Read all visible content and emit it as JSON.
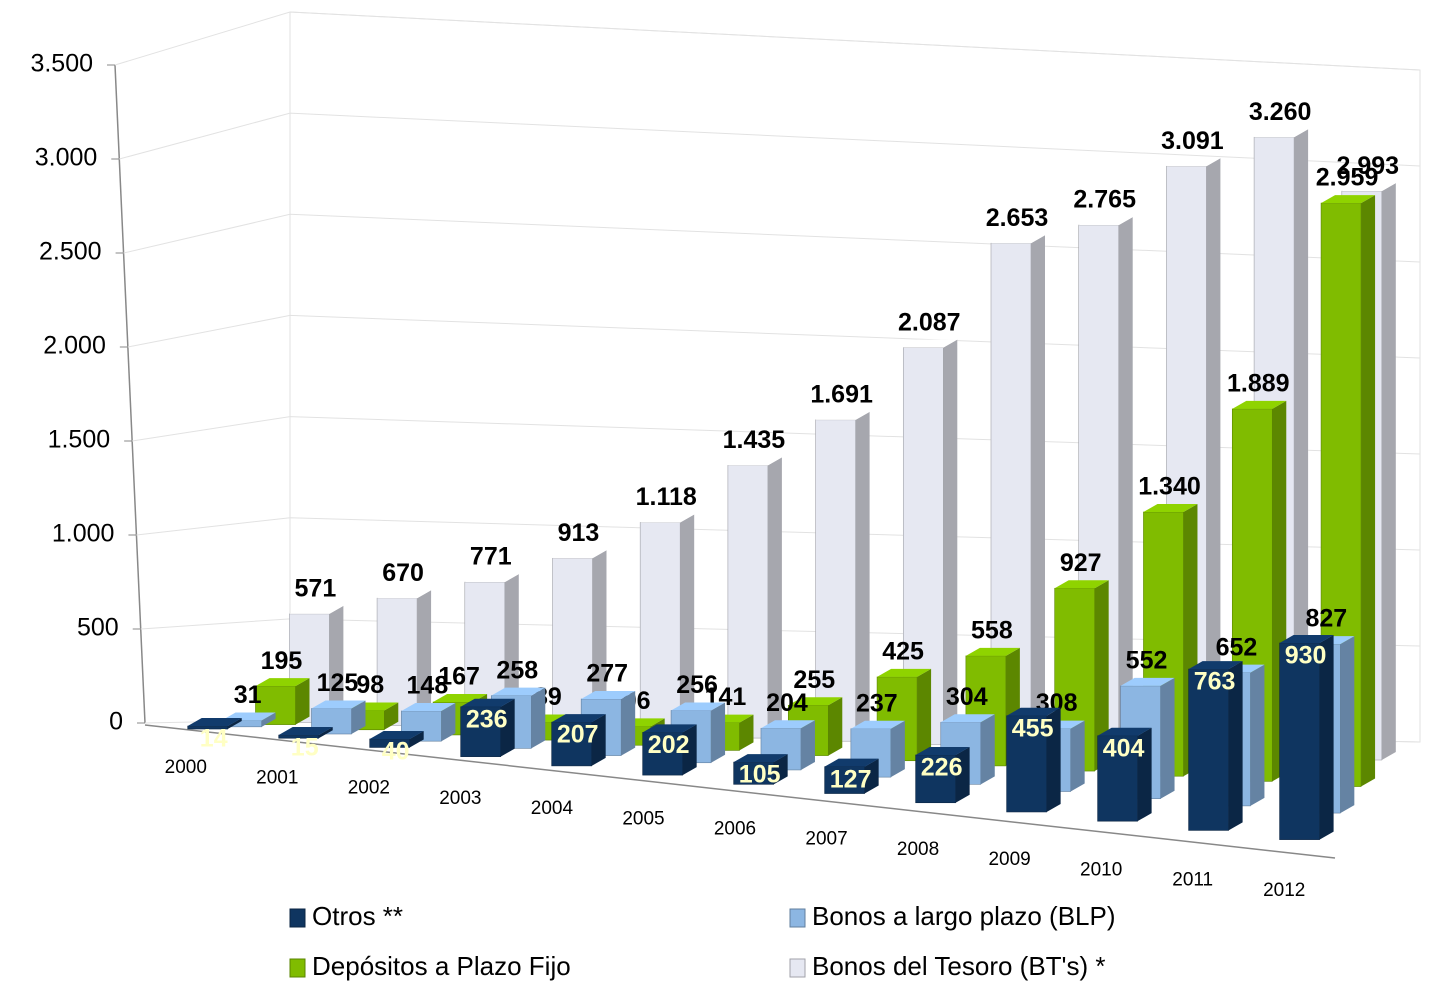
{
  "chart_data": {
    "type": "bar3d",
    "categories": [
      "2000",
      "2001",
      "2002",
      "2003",
      "2004",
      "2005",
      "2006",
      "2007",
      "2008",
      "2009",
      "2010",
      "2011",
      "2012"
    ],
    "series": [
      {
        "name": "Otros **",
        "color": "#0f3560",
        "values": [
          14,
          15,
          40,
          236,
          207,
          202,
          105,
          127,
          226,
          455,
          404,
          763,
          930
        ],
        "value_labels": [
          "14",
          "15",
          "40",
          "236",
          "207",
          "202",
          "105",
          "127",
          "226",
          "455",
          "404",
          "763",
          "930"
        ]
      },
      {
        "name": "Bonos a largo plazo (BLP)",
        "color": "#8cb6e2",
        "values": [
          31,
          125,
          148,
          258,
          277,
          256,
          204,
          237,
          304,
          308,
          552,
          652,
          827
        ],
        "value_labels": [
          "31",
          "125",
          "148",
          "258",
          "277",
          "256",
          "204",
          "237",
          "304",
          "308",
          "552",
          "652",
          "827"
        ]
      },
      {
        "name": "Depósitos a Plazo Fijo",
        "color": "#80bc00",
        "values": [
          195,
          98,
          167,
          89,
          96,
          141,
          255,
          425,
          558,
          927,
          1340,
          1889,
          2959
        ],
        "value_labels": [
          "195",
          "98",
          "167",
          "89",
          "96",
          "141",
          "255",
          "425",
          "558",
          "927",
          "1.340",
          "1.889",
          "2.959"
        ]
      },
      {
        "name": "Bonos del Tesoro (BT's) *",
        "color": "#e6e8f2",
        "values": [
          571,
          670,
          771,
          913,
          1118,
          1435,
          1691,
          2087,
          2653,
          2765,
          3091,
          3260,
          2993
        ],
        "value_labels": [
          "571",
          "670",
          "771",
          "913",
          "1.118",
          "1.435",
          "1.691",
          "2.087",
          "2.653",
          "2.765",
          "3.091",
          "3.260",
          "2.993"
        ]
      }
    ],
    "ylim": [
      0,
      3500
    ],
    "yticks": [
      0,
      500,
      {
        "value": 1000,
        "label": "1.000"
      },
      {
        "value": 1500,
        "label": "1.500"
      },
      {
        "value": 2000,
        "label": "2.000"
      },
      {
        "value": 2500,
        "label": "2.500"
      },
      {
        "value": 3000,
        "label": "3.000"
      },
      {
        "value": 3500,
        "label": "3.500"
      }
    ],
    "grid": true,
    "legend": "bottom"
  }
}
